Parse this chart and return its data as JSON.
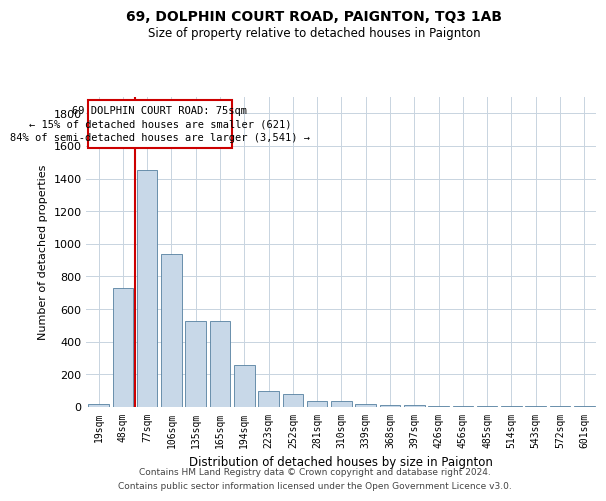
{
  "title1": "69, DOLPHIN COURT ROAD, PAIGNTON, TQ3 1AB",
  "title2": "Size of property relative to detached houses in Paignton",
  "xlabel": "Distribution of detached houses by size in Paignton",
  "ylabel": "Number of detached properties",
  "footer1": "Contains HM Land Registry data © Crown copyright and database right 2024.",
  "footer2": "Contains public sector information licensed under the Open Government Licence v3.0.",
  "annotation_line1": "69 DOLPHIN COURT ROAD: 75sqm",
  "annotation_line2": "← 15% of detached houses are smaller (621)",
  "annotation_line3": "84% of semi-detached houses are larger (3,541) →",
  "bar_color": "#c8d8e8",
  "bar_edge_color": "#5580a0",
  "highlight_line_color": "#cc0000",
  "annotation_box_edge": "#cc0000",
  "background_color": "#ffffff",
  "grid_color": "#c8d4e0",
  "categories": [
    "19sqm",
    "48sqm",
    "77sqm",
    "106sqm",
    "135sqm",
    "165sqm",
    "194sqm",
    "223sqm",
    "252sqm",
    "281sqm",
    "310sqm",
    "339sqm",
    "368sqm",
    "397sqm",
    "426sqm",
    "456sqm",
    "485sqm",
    "514sqm",
    "543sqm",
    "572sqm",
    "601sqm"
  ],
  "values": [
    20,
    730,
    1450,
    940,
    530,
    530,
    260,
    100,
    80,
    35,
    35,
    20,
    10,
    10,
    5,
    5,
    5,
    5,
    5,
    5,
    5
  ],
  "ylim": [
    0,
    1900
  ],
  "yticks": [
    0,
    200,
    400,
    600,
    800,
    1000,
    1200,
    1400,
    1600,
    1800
  ],
  "red_line_x": 1.5
}
